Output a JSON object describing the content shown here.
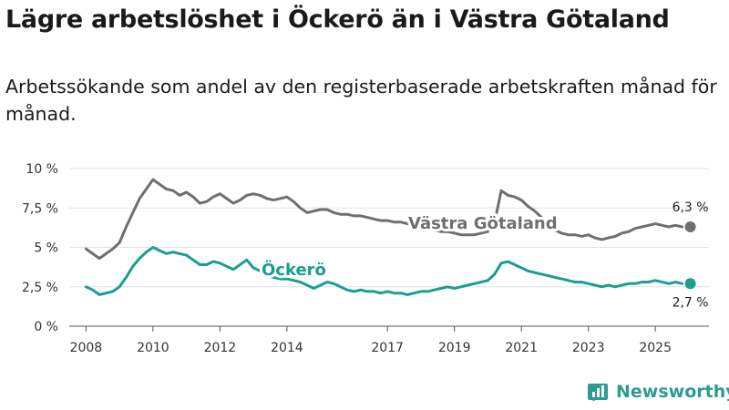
{
  "header": {
    "title": "Lägre arbetslöshet i Öckerö än i Västra Götaland",
    "subtitle": "Arbetssökande som andel av den registerbaserade arbetskraften månad för månad."
  },
  "brand": {
    "name": "Newsworthy"
  },
  "chart_data": {
    "type": "line",
    "title": "Lägre arbetslöshet i Öckerö än i Västra Götaland",
    "xlabel": "",
    "ylabel": "",
    "xlim": [
      2008.0,
      2025.8
    ],
    "ylim": [
      0,
      10
    ],
    "y_ticks": [
      0,
      2.5,
      5,
      7.5,
      10
    ],
    "y_tick_labels": [
      "0 %",
      "2,5 %",
      "5 %",
      "7,5 %",
      "10 %"
    ],
    "x_ticks": [
      2008,
      2010,
      2012,
      2014,
      2017,
      2019,
      2021,
      2023,
      2025
    ],
    "x_tick_labels": [
      "2008",
      "2010",
      "2012",
      "2014",
      "2017",
      "2019",
      "2021",
      "2023",
      "2025"
    ],
    "grid": true,
    "series": [
      {
        "name": "Västra Götaland",
        "color": "#6f6f6f",
        "end_label": "6,3 %",
        "x": [
          2008.0,
          2008.2,
          2008.4,
          2008.6,
          2008.8,
          2009.0,
          2009.2,
          2009.4,
          2009.6,
          2009.8,
          2010.0,
          2010.2,
          2010.4,
          2010.6,
          2010.8,
          2011.0,
          2011.2,
          2011.4,
          2011.6,
          2011.8,
          2012.0,
          2012.2,
          2012.4,
          2012.6,
          2012.8,
          2013.0,
          2013.2,
          2013.4,
          2013.6,
          2013.8,
          2014.0,
          2014.2,
          2014.4,
          2014.6,
          2014.8,
          2015.0,
          2015.2,
          2015.4,
          2015.6,
          2015.8,
          2016.0,
          2016.2,
          2016.4,
          2016.6,
          2016.8,
          2017.0,
          2017.2,
          2017.4,
          2017.6,
          2017.8,
          2018.0,
          2018.2,
          2018.4,
          2018.6,
          2018.8,
          2019.0,
          2019.2,
          2019.4,
          2019.6,
          2019.8,
          2020.0,
          2020.2,
          2020.4,
          2020.6,
          2020.8,
          2021.0,
          2021.2,
          2021.4,
          2021.6,
          2021.8,
          2022.0,
          2022.2,
          2022.4,
          2022.6,
          2022.8,
          2023.0,
          2023.2,
          2023.4,
          2023.6,
          2023.8,
          2024.0,
          2024.2,
          2024.4,
          2024.6,
          2024.8,
          2025.0,
          2025.2,
          2025.4,
          2025.6,
          2025.8
        ],
        "values": [
          4.9,
          4.6,
          4.3,
          4.6,
          4.9,
          5.3,
          6.3,
          7.2,
          8.1,
          8.7,
          9.3,
          9.0,
          8.7,
          8.6,
          8.3,
          8.5,
          8.2,
          7.8,
          7.9,
          8.2,
          8.4,
          8.1,
          7.8,
          8.0,
          8.3,
          8.4,
          8.3,
          8.1,
          8.0,
          8.1,
          8.2,
          7.9,
          7.5,
          7.2,
          7.3,
          7.4,
          7.4,
          7.2,
          7.1,
          7.1,
          7.0,
          7.0,
          6.9,
          6.8,
          6.7,
          6.7,
          6.6,
          6.6,
          6.5,
          6.4,
          6.3,
          6.2,
          6.1,
          6.0,
          6.0,
          5.9,
          5.8,
          5.8,
          5.8,
          5.9,
          6.0,
          6.6,
          8.6,
          8.3,
          8.2,
          8.0,
          7.6,
          7.3,
          6.9,
          6.5,
          6.1,
          5.9,
          5.8,
          5.8,
          5.7,
          5.8,
          5.6,
          5.5,
          5.6,
          5.7,
          5.9,
          6.0,
          6.2,
          6.3,
          6.4,
          6.5,
          6.4,
          6.3,
          6.4,
          6.3
        ]
      },
      {
        "name": "Öckerö",
        "color": "#1a9e8f",
        "end_label": "2,7 %",
        "x": [
          2008.0,
          2008.2,
          2008.4,
          2008.6,
          2008.8,
          2009.0,
          2009.2,
          2009.4,
          2009.6,
          2009.8,
          2010.0,
          2010.2,
          2010.4,
          2010.6,
          2010.8,
          2011.0,
          2011.2,
          2011.4,
          2011.6,
          2011.8,
          2012.0,
          2012.2,
          2012.4,
          2012.6,
          2012.8,
          2013.0,
          2013.2,
          2013.4,
          2013.6,
          2013.8,
          2014.0,
          2014.2,
          2014.4,
          2014.6,
          2014.8,
          2015.0,
          2015.2,
          2015.4,
          2015.6,
          2015.8,
          2016.0,
          2016.2,
          2016.4,
          2016.6,
          2016.8,
          2017.0,
          2017.2,
          2017.4,
          2017.6,
          2017.8,
          2018.0,
          2018.2,
          2018.4,
          2018.6,
          2018.8,
          2019.0,
          2019.2,
          2019.4,
          2019.6,
          2019.8,
          2020.0,
          2020.2,
          2020.4,
          2020.6,
          2020.8,
          2021.0,
          2021.2,
          2021.4,
          2021.6,
          2021.8,
          2022.0,
          2022.2,
          2022.4,
          2022.6,
          2022.8,
          2023.0,
          2023.2,
          2023.4,
          2023.6,
          2023.8,
          2024.0,
          2024.2,
          2024.4,
          2024.6,
          2024.8,
          2025.0,
          2025.2,
          2025.4,
          2025.6,
          2025.8
        ],
        "values": [
          2.5,
          2.3,
          2.0,
          2.1,
          2.2,
          2.5,
          3.1,
          3.8,
          4.3,
          4.7,
          5.0,
          4.8,
          4.6,
          4.7,
          4.6,
          4.5,
          4.2,
          3.9,
          3.9,
          4.1,
          4.0,
          3.8,
          3.6,
          3.9,
          4.2,
          3.7,
          3.5,
          3.2,
          3.1,
          3.0,
          3.0,
          2.9,
          2.8,
          2.6,
          2.4,
          2.6,
          2.8,
          2.7,
          2.5,
          2.3,
          2.2,
          2.3,
          2.2,
          2.2,
          2.1,
          2.2,
          2.1,
          2.1,
          2.0,
          2.1,
          2.2,
          2.2,
          2.3,
          2.4,
          2.5,
          2.4,
          2.5,
          2.6,
          2.7,
          2.8,
          2.9,
          3.3,
          4.0,
          4.1,
          3.9,
          3.7,
          3.5,
          3.4,
          3.3,
          3.2,
          3.1,
          3.0,
          2.9,
          2.8,
          2.8,
          2.7,
          2.6,
          2.5,
          2.6,
          2.5,
          2.6,
          2.7,
          2.7,
          2.8,
          2.8,
          2.9,
          2.8,
          2.7,
          2.8,
          2.7
        ]
      }
    ]
  }
}
